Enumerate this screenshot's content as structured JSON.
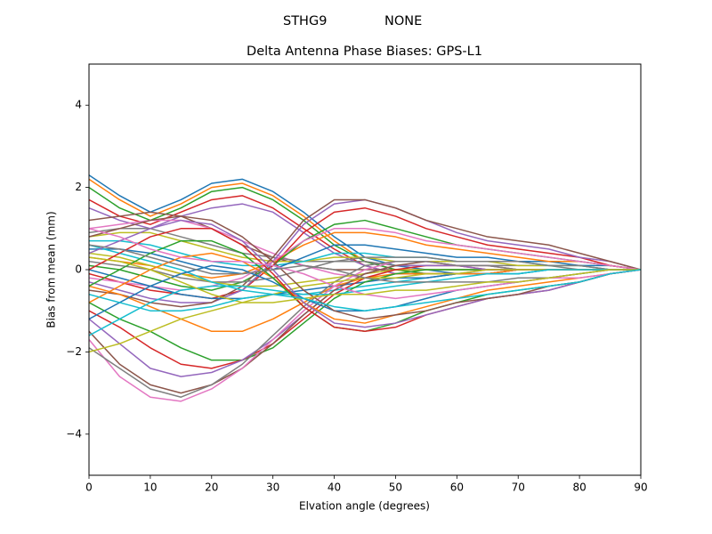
{
  "figure": {
    "suptitle_left": "STHG9",
    "suptitle_right": "NONE"
  },
  "chart_data": {
    "type": "line",
    "title": "Delta Antenna Phase Biases: GPS-L1",
    "xlabel": "Elvation angle (degrees)",
    "ylabel": "Bias from mean (mm)",
    "xlim": [
      0,
      90
    ],
    "ylim": [
      -5,
      5
    ],
    "xticks": [
      0,
      10,
      20,
      30,
      40,
      50,
      60,
      70,
      80,
      90
    ],
    "xtick_labels": [
      "0",
      "10",
      "20",
      "30",
      "40",
      "50",
      "60",
      "70",
      "80",
      "90"
    ],
    "yticks": [
      -4,
      -2,
      0,
      2,
      4
    ],
    "ytick_labels": [
      "−4",
      "−2",
      "0",
      "2",
      "4"
    ],
    "grid": false,
    "legend": "none",
    "x": [
      0,
      5,
      10,
      15,
      20,
      25,
      30,
      35,
      40,
      45,
      50,
      55,
      60,
      65,
      70,
      75,
      80,
      85,
      90
    ],
    "colors": [
      "#1f77b4",
      "#ff7f0e",
      "#2ca02c",
      "#d62728",
      "#9467bd",
      "#8c564b",
      "#e377c2",
      "#7f7f7f",
      "#bcbd22",
      "#17becf"
    ],
    "series": [
      {
        "values": [
          2.3,
          1.8,
          1.4,
          1.7,
          2.1,
          2.2,
          1.9,
          1.4,
          0.8,
          0.3,
          0.1,
          0.0,
          -0.1,
          -0.1,
          0.0,
          0.0,
          0.0,
          0.0,
          0.0
        ]
      },
      {
        "values": [
          2.2,
          1.7,
          1.3,
          1.6,
          2.0,
          2.1,
          1.8,
          1.3,
          0.7,
          0.2,
          0.0,
          -0.1,
          -0.1,
          -0.1,
          0.0,
          0.0,
          0.0,
          0.0,
          0.0
        ]
      },
      {
        "values": [
          2.0,
          1.5,
          1.2,
          1.5,
          1.9,
          2.0,
          1.7,
          1.2,
          0.6,
          0.2,
          0.0,
          -0.1,
          -0.1,
          -0.1,
          0.0,
          0.0,
          0.0,
          0.0,
          0.0
        ]
      },
      {
        "values": [
          1.7,
          1.3,
          1.1,
          1.4,
          1.7,
          1.8,
          1.5,
          1.0,
          0.5,
          0.1,
          -0.1,
          -0.1,
          -0.1,
          -0.1,
          0.0,
          0.0,
          0.0,
          0.0,
          0.0
        ]
      },
      {
        "values": [
          1.5,
          1.2,
          1.0,
          1.3,
          1.5,
          1.6,
          1.4,
          0.9,
          0.4,
          0.1,
          -0.1,
          -0.1,
          -0.1,
          0.0,
          0.0,
          0.0,
          0.0,
          0.0,
          0.0
        ]
      },
      {
        "values": [
          1.2,
          1.3,
          1.4,
          1.3,
          1.0,
          0.6,
          0.3,
          0.1,
          0.0,
          0.0,
          0.0,
          0.0,
          0.0,
          0.0,
          0.0,
          0.0,
          0.0,
          0.0,
          0.0
        ]
      },
      {
        "values": [
          1.0,
          1.1,
          1.2,
          1.2,
          1.0,
          0.7,
          0.4,
          0.1,
          -0.1,
          -0.2,
          -0.2,
          -0.2,
          -0.1,
          -0.1,
          0.0,
          0.0,
          0.0,
          0.0,
          0.0
        ]
      },
      {
        "values": [
          0.9,
          1.0,
          1.0,
          0.8,
          0.6,
          0.4,
          0.3,
          0.2,
          0.2,
          0.2,
          0.1,
          0.1,
          0.1,
          0.1,
          0.1,
          0.1,
          0.0,
          0.0,
          0.0
        ]
      },
      {
        "values": [
          0.8,
          0.9,
          0.9,
          0.7,
          0.5,
          0.3,
          0.2,
          0.2,
          0.3,
          0.3,
          0.2,
          0.2,
          0.2,
          0.2,
          0.1,
          0.1,
          0.1,
          0.0,
          0.0
        ]
      },
      {
        "values": [
          0.7,
          0.7,
          0.6,
          0.4,
          0.2,
          0.1,
          0.1,
          0.2,
          0.4,
          0.4,
          0.3,
          0.3,
          0.2,
          0.2,
          0.2,
          0.1,
          0.1,
          0.0,
          0.0
        ]
      },
      {
        "values": [
          0.5,
          0.5,
          0.4,
          0.2,
          0.0,
          -0.1,
          0.0,
          0.3,
          0.6,
          0.6,
          0.5,
          0.4,
          0.3,
          0.3,
          0.2,
          0.2,
          0.1,
          0.1,
          0.0
        ]
      },
      {
        "values": [
          0.3,
          0.2,
          0.1,
          -0.1,
          -0.2,
          -0.1,
          0.2,
          0.6,
          0.9,
          0.9,
          0.8,
          0.6,
          0.5,
          0.4,
          0.3,
          0.2,
          0.2,
          0.1,
          0.0
        ]
      },
      {
        "values": [
          0.1,
          0.0,
          -0.2,
          -0.4,
          -0.5,
          -0.3,
          0.1,
          0.7,
          1.1,
          1.2,
          1.0,
          0.8,
          0.6,
          0.5,
          0.4,
          0.3,
          0.2,
          0.1,
          0.0
        ]
      },
      {
        "values": [
          -0.1,
          -0.3,
          -0.5,
          -0.6,
          -0.7,
          -0.5,
          0.1,
          0.9,
          1.4,
          1.5,
          1.3,
          1.0,
          0.8,
          0.6,
          0.5,
          0.4,
          0.3,
          0.1,
          0.0
        ]
      },
      {
        "values": [
          -0.3,
          -0.5,
          -0.7,
          -0.8,
          -0.8,
          -0.5,
          0.2,
          1.1,
          1.6,
          1.7,
          1.5,
          1.2,
          0.9,
          0.7,
          0.6,
          0.5,
          0.3,
          0.2,
          0.0
        ]
      },
      {
        "values": [
          -0.5,
          -0.6,
          -0.8,
          -0.9,
          -0.8,
          -0.4,
          0.3,
          1.2,
          1.7,
          1.7,
          1.5,
          1.2,
          1.0,
          0.8,
          0.7,
          0.6,
          0.4,
          0.2,
          0.0
        ]
      },
      {
        "values": [
          -0.2,
          -0.3,
          -0.4,
          -0.5,
          -0.4,
          -0.2,
          0.2,
          0.7,
          1.0,
          1.0,
          0.9,
          0.7,
          0.6,
          0.5,
          0.4,
          0.3,
          0.2,
          0.1,
          0.0
        ]
      },
      {
        "values": [
          0.2,
          0.1,
          0.0,
          -0.2,
          -0.3,
          -0.3,
          -0.2,
          0.0,
          0.2,
          0.3,
          0.3,
          0.3,
          0.2,
          0.2,
          0.2,
          0.1,
          0.1,
          0.0,
          0.0
        ]
      },
      {
        "values": [
          0.4,
          0.3,
          0.1,
          -0.1,
          -0.3,
          -0.4,
          -0.4,
          -0.3,
          -0.2,
          -0.1,
          0.0,
          0.0,
          0.0,
          0.0,
          0.0,
          0.0,
          0.0,
          0.0,
          0.0
        ]
      },
      {
        "values": [
          0.6,
          0.4,
          0.2,
          0.0,
          -0.3,
          -0.5,
          -0.6,
          -0.6,
          -0.5,
          -0.4,
          -0.3,
          -0.2,
          -0.1,
          -0.1,
          -0.1,
          0.0,
          0.0,
          0.0,
          0.0
        ]
      },
      {
        "values": [
          0.0,
          -0.2,
          -0.4,
          -0.6,
          -0.7,
          -0.7,
          -0.6,
          -0.5,
          -0.4,
          -0.3,
          -0.2,
          -0.2,
          -0.1,
          -0.1,
          -0.1,
          0.0,
          0.0,
          0.0,
          0.0
        ]
      },
      {
        "values": [
          -0.4,
          -0.6,
          -0.9,
          -1.2,
          -1.5,
          -1.5,
          -1.2,
          -0.8,
          -0.4,
          -0.2,
          -0.1,
          -0.1,
          -0.1,
          -0.1,
          0.0,
          0.0,
          0.0,
          0.0,
          0.0
        ]
      },
      {
        "values": [
          -0.8,
          -1.2,
          -1.5,
          -1.9,
          -2.2,
          -2.2,
          -1.9,
          -1.3,
          -0.7,
          -0.3,
          -0.1,
          0.0,
          0.0,
          0.0,
          0.0,
          0.0,
          0.0,
          0.0,
          0.0
        ]
      },
      {
        "values": [
          -1.0,
          -1.4,
          -1.9,
          -2.3,
          -2.4,
          -2.2,
          -1.8,
          -1.2,
          -0.6,
          -0.2,
          0.0,
          0.1,
          0.1,
          0.0,
          0.0,
          0.0,
          0.0,
          0.0,
          0.0
        ]
      },
      {
        "values": [
          -1.2,
          -1.8,
          -2.4,
          -2.6,
          -2.5,
          -2.2,
          -1.7,
          -1.1,
          -0.5,
          -0.1,
          0.1,
          0.1,
          0.1,
          0.0,
          0.0,
          0.0,
          0.0,
          0.0,
          0.0
        ]
      },
      {
        "values": [
          -1.5,
          -2.3,
          -2.8,
          -3.0,
          -2.8,
          -2.4,
          -1.8,
          -1.1,
          -0.5,
          -0.1,
          0.1,
          0.2,
          0.1,
          0.1,
          0.0,
          0.0,
          0.0,
          0.0,
          0.0
        ]
      },
      {
        "values": [
          -1.7,
          -2.6,
          -3.1,
          -3.2,
          -2.9,
          -2.4,
          -1.7,
          -1.0,
          -0.4,
          0.0,
          0.2,
          0.2,
          0.1,
          0.1,
          0.0,
          0.0,
          0.0,
          0.0,
          0.0
        ]
      },
      {
        "values": [
          -1.9,
          -2.4,
          -2.9,
          -3.1,
          -2.8,
          -2.3,
          -1.6,
          -0.9,
          -0.3,
          0.1,
          0.2,
          0.2,
          0.1,
          0.1,
          0.0,
          0.0,
          0.0,
          0.0,
          0.0
        ]
      },
      {
        "values": [
          -2.0,
          -1.8,
          -1.5,
          -1.2,
          -1.0,
          -0.8,
          -0.6,
          -0.4,
          -0.3,
          -0.2,
          -0.2,
          -0.1,
          -0.1,
          0.0,
          0.0,
          0.0,
          0.0,
          0.0,
          0.0
        ]
      },
      {
        "values": [
          -1.6,
          -1.2,
          -0.8,
          -0.5,
          -0.4,
          -0.4,
          -0.5,
          -0.6,
          -0.6,
          -0.5,
          -0.4,
          -0.3,
          -0.2,
          -0.1,
          -0.1,
          0.0,
          0.0,
          0.0,
          0.0
        ]
      },
      {
        "values": [
          -1.2,
          -0.8,
          -0.4,
          -0.1,
          0.1,
          0.0,
          -0.3,
          -0.7,
          -1.0,
          -1.0,
          -0.9,
          -0.7,
          -0.5,
          -0.4,
          -0.3,
          -0.2,
          -0.1,
          0.0,
          0.0
        ]
      },
      {
        "values": [
          -0.8,
          -0.4,
          0.0,
          0.3,
          0.4,
          0.2,
          -0.2,
          -0.8,
          -1.2,
          -1.3,
          -1.1,
          -0.9,
          -0.7,
          -0.5,
          -0.4,
          -0.3,
          -0.2,
          -0.1,
          0.0
        ]
      },
      {
        "values": [
          -0.4,
          0.0,
          0.4,
          0.7,
          0.7,
          0.4,
          -0.2,
          -0.9,
          -1.4,
          -1.5,
          -1.3,
          -1.0,
          -0.8,
          -0.6,
          -0.5,
          -0.4,
          -0.3,
          -0.1,
          0.0
        ]
      },
      {
        "values": [
          0.0,
          0.4,
          0.8,
          1.0,
          1.0,
          0.6,
          -0.1,
          -0.9,
          -1.4,
          -1.5,
          -1.4,
          -1.1,
          -0.9,
          -0.7,
          -0.6,
          -0.5,
          -0.3,
          -0.1,
          0.0
        ]
      },
      {
        "values": [
          0.4,
          0.7,
          1.0,
          1.2,
          1.1,
          0.7,
          0.0,
          -0.8,
          -1.3,
          -1.4,
          -1.3,
          -1.1,
          -0.9,
          -0.7,
          -0.6,
          -0.5,
          -0.3,
          -0.1,
          0.0
        ]
      },
      {
        "values": [
          0.8,
          1.0,
          1.2,
          1.3,
          1.2,
          0.8,
          0.2,
          -0.5,
          -1.0,
          -1.2,
          -1.1,
          -1.0,
          -0.8,
          -0.7,
          -0.6,
          -0.4,
          -0.3,
          -0.1,
          0.0
        ]
      },
      {
        "values": [
          1.0,
          0.8,
          0.5,
          0.3,
          0.2,
          0.2,
          0.1,
          -0.1,
          -0.4,
          -0.6,
          -0.7,
          -0.6,
          -0.5,
          -0.4,
          -0.3,
          -0.2,
          -0.2,
          -0.1,
          0.0
        ]
      },
      {
        "values": [
          0.6,
          0.5,
          0.3,
          0.1,
          -0.1,
          -0.1,
          0.0,
          0.1,
          0.0,
          -0.2,
          -0.3,
          -0.3,
          -0.3,
          -0.3,
          -0.2,
          -0.2,
          -0.1,
          0.0,
          0.0
        ]
      },
      {
        "values": [
          0.3,
          0.2,
          0.0,
          -0.3,
          -0.6,
          -0.8,
          -0.8,
          -0.7,
          -0.6,
          -0.6,
          -0.5,
          -0.5,
          -0.4,
          -0.3,
          -0.3,
          -0.2,
          -0.1,
          0.0,
          0.0
        ]
      },
      {
        "values": [
          -0.6,
          -0.8,
          -1.0,
          -1.0,
          -0.9,
          -0.7,
          -0.6,
          -0.7,
          -0.9,
          -1.0,
          -0.9,
          -0.8,
          -0.7,
          -0.6,
          -0.5,
          -0.4,
          -0.3,
          -0.1,
          0.0
        ]
      }
    ]
  }
}
